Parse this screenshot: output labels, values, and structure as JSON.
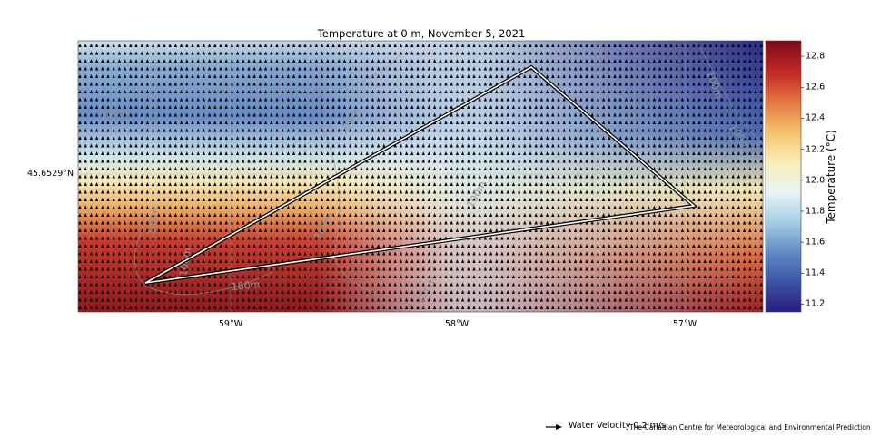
{
  "title": "Temperature  at 0 m, November 5, 2021",
  "lat_label": "45.6529°N",
  "lon_labels": [
    "59°W",
    "58°W",
    "57°W"
  ],
  "contour_labels": [
    "100m",
    "100m",
    "100m",
    "100m",
    "100m",
    "100m",
    "100m",
    "100m",
    "100m",
    "100m"
  ],
  "colorbar": {
    "label": "Temperature (°C)",
    "ticks": [
      "12.8",
      "12.6",
      "12.4",
      "12.2",
      "12.0",
      "11.8",
      "11.6",
      "11.4",
      "11.2"
    ],
    "min": 11.15,
    "max": 12.9,
    "colors": [
      "#2a1e7e",
      "#3c53a4",
      "#5f8cc2",
      "#a6cde3",
      "#e7f4f6",
      "#f8efb8",
      "#f5c46e",
      "#e57a44",
      "#c42a27",
      "#7a0b18"
    ]
  },
  "legend": {
    "label": "Water Velocity 0.2 m/s"
  },
  "credit": "The Canadian Centre for Meteorological and Environmental Prediction"
}
